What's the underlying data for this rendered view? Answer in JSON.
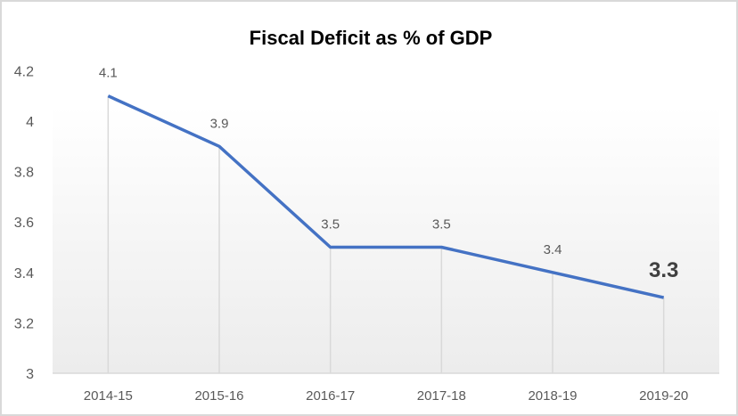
{
  "chart_data": {
    "type": "line",
    "title": "Fiscal Deficit as % of GDP",
    "xlabel": "",
    "ylabel": "",
    "categories": [
      "2014-15",
      "2015-16",
      "2016-17",
      "2017-18",
      "2018-19",
      "2019-20"
    ],
    "series": [
      {
        "name": "Fiscal Deficit as % of GDP",
        "values": [
          4.1,
          3.9,
          3.5,
          3.5,
          3.4,
          3.3
        ]
      }
    ],
    "data_labels": [
      "4.1",
      "3.9",
      "3.5",
      "3.5",
      "3.4",
      "3.3"
    ],
    "highlighted_label_index": 5,
    "ylim": [
      3,
      4.2
    ],
    "yticks": [
      "3",
      "3.2",
      "3.4",
      "3.6",
      "3.8",
      "4",
      "4.2"
    ],
    "grid": false,
    "drop_lines": true,
    "legend": "none",
    "colors": {
      "line": "#4472c4",
      "drop_line": "#d9d9d9",
      "text": "#595959",
      "highlight_label": "#404040"
    }
  }
}
